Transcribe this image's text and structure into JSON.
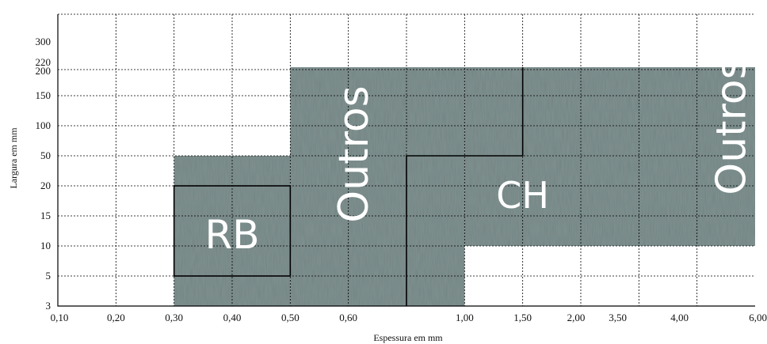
{
  "chart_data": {
    "type": "region-map",
    "xlabel": "Espessura em mm",
    "ylabel": "Largura em mm",
    "x_ticks": [
      "0,10",
      "0,20",
      "0,30",
      "0,40",
      "0,50",
      "0,60",
      "",
      "1,00",
      "1,50",
      "2,00",
      "3,50",
      "4,00",
      "6,00"
    ],
    "y_ticks": [
      "",
      "3",
      "5",
      "10",
      "15",
      "20",
      "50",
      "100",
      "150",
      "200",
      "220",
      "300"
    ],
    "grid": true,
    "fill_color": "#7f9190",
    "regions": [
      {
        "x_from": "0,30",
        "x_to": "0,50",
        "y_from": "3",
        "y_to": "50"
      },
      {
        "x_from": "0,50",
        "x_to": "1,00",
        "y_from": "3",
        "y_to": "220"
      },
      {
        "x_from": "1,00",
        "x_to": "6,00",
        "y_from": "10",
        "y_to": "220"
      }
    ],
    "boundaries": [
      {
        "x_from": "0,30",
        "x_to": "0,50",
        "y_from": "5",
        "y_to": "20"
      },
      {
        "x_from": "",
        "x_to": "1,50",
        "y_from": "3",
        "y_to": "220"
      }
    ],
    "labels": [
      {
        "text": "RB",
        "x": "0,40",
        "y": "10",
        "rotate": false
      },
      {
        "text": "Outros",
        "x": "0,60",
        "y": "20",
        "rotate": true
      },
      {
        "text": "CH",
        "x": "1,50",
        "y": "20",
        "rotate": false
      },
      {
        "text": "Outros",
        "x": "4,00",
        "y": "20",
        "rotate": true
      }
    ]
  }
}
